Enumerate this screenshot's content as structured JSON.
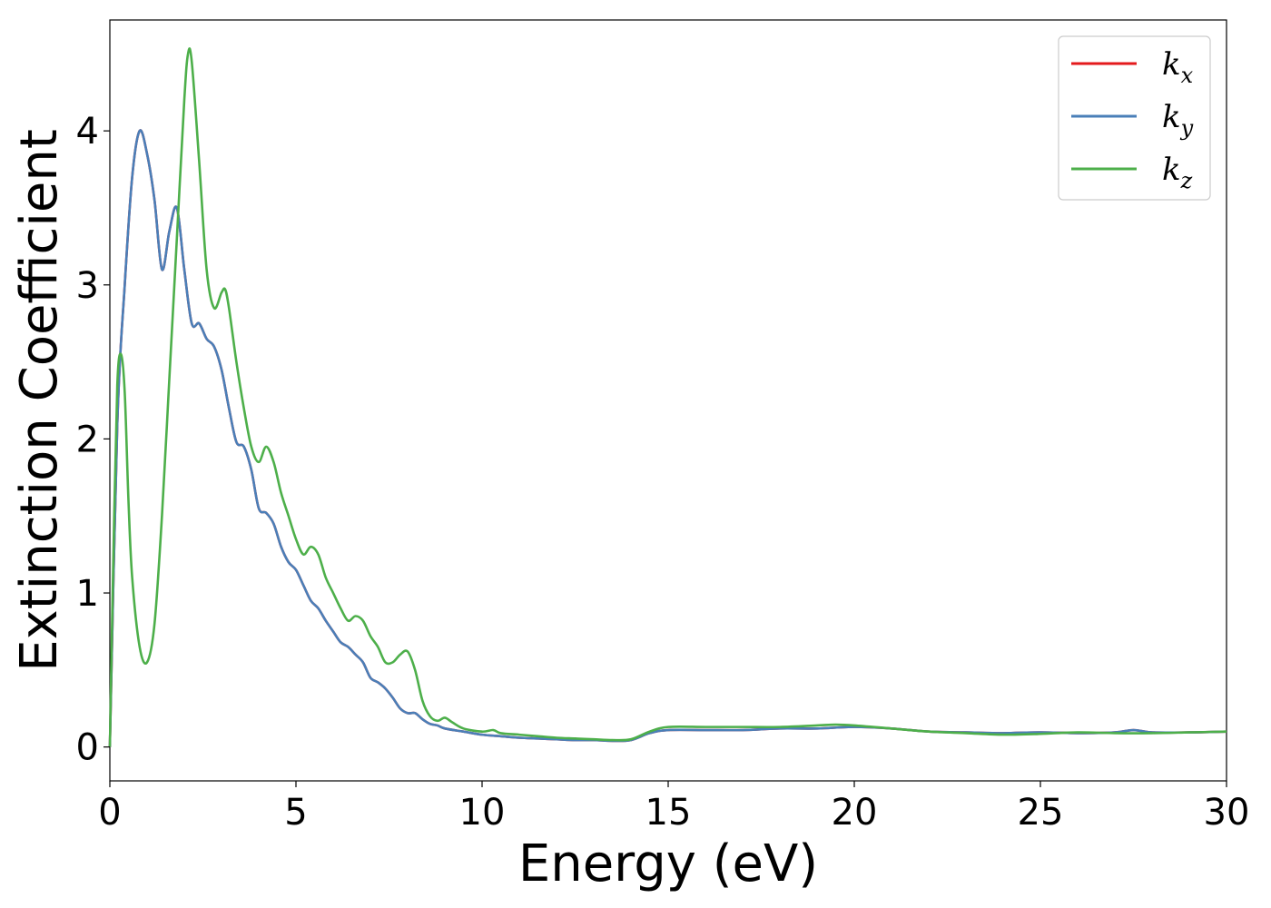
{
  "chart_data": {
    "type": "line",
    "xlabel": "Energy (eV)",
    "ylabel": "Extinction Coefficient",
    "xlim": [
      0,
      30
    ],
    "ylim": [
      -0.22,
      4.72
    ],
    "xticks": [
      "0",
      "5",
      "10",
      "15",
      "20",
      "25",
      "30"
    ],
    "yticks": [
      "0",
      "1",
      "2",
      "3",
      "4"
    ],
    "grid": false,
    "legend_position": "top-right",
    "series": [
      {
        "name": "k_x",
        "legend_main": "k",
        "legend_sub": "x",
        "color": "#e41a1c",
        "x": [
          0,
          0.2,
          0.4,
          0.6,
          0.8,
          1.0,
          1.2,
          1.4,
          1.6,
          1.8,
          2.0,
          2.2,
          2.4,
          2.6,
          2.8,
          3.0,
          3.2,
          3.4,
          3.6,
          3.8,
          4.0,
          4.2,
          4.4,
          4.6,
          4.8,
          5.0,
          5.2,
          5.4,
          5.6,
          5.8,
          6.0,
          6.2,
          6.4,
          6.6,
          6.8,
          7.0,
          7.2,
          7.4,
          7.6,
          7.8,
          8.0,
          8.2,
          8.4,
          8.6,
          8.8,
          9.0,
          9.5,
          10.0,
          10.5,
          11.0,
          11.5,
          12.0,
          12.5,
          13.0,
          13.5,
          14.0,
          14.5,
          15.0,
          16.0,
          17.0,
          18.0,
          19.0,
          20.0,
          21.0,
          22.0,
          23.0,
          24.0,
          25.0,
          26.0,
          27.0,
          27.5,
          28.0,
          29.0,
          30.0
        ],
        "values": [
          0,
          2.1,
          3.0,
          3.7,
          4.0,
          3.85,
          3.55,
          3.1,
          3.35,
          3.5,
          3.1,
          2.75,
          2.75,
          2.65,
          2.6,
          2.45,
          2.2,
          1.98,
          1.95,
          1.8,
          1.55,
          1.52,
          1.45,
          1.3,
          1.2,
          1.15,
          1.05,
          0.95,
          0.9,
          0.82,
          0.75,
          0.68,
          0.65,
          0.6,
          0.55,
          0.45,
          0.42,
          0.38,
          0.32,
          0.25,
          0.22,
          0.22,
          0.18,
          0.15,
          0.14,
          0.12,
          0.1,
          0.08,
          0.07,
          0.06,
          0.055,
          0.05,
          0.045,
          0.045,
          0.04,
          0.045,
          0.09,
          0.11,
          0.11,
          0.11,
          0.12,
          0.12,
          0.13,
          0.12,
          0.1,
          0.095,
          0.09,
          0.095,
          0.09,
          0.095,
          0.11,
          0.095,
          0.095,
          0.1
        ]
      },
      {
        "name": "k_y",
        "legend_main": "k",
        "legend_sub": "y",
        "color": "#4a7fb8",
        "x": [
          0,
          0.2,
          0.4,
          0.6,
          0.8,
          1.0,
          1.2,
          1.4,
          1.6,
          1.8,
          2.0,
          2.2,
          2.4,
          2.6,
          2.8,
          3.0,
          3.2,
          3.4,
          3.6,
          3.8,
          4.0,
          4.2,
          4.4,
          4.6,
          4.8,
          5.0,
          5.2,
          5.4,
          5.6,
          5.8,
          6.0,
          6.2,
          6.4,
          6.6,
          6.8,
          7.0,
          7.2,
          7.4,
          7.6,
          7.8,
          8.0,
          8.2,
          8.4,
          8.6,
          8.8,
          9.0,
          9.5,
          10.0,
          10.5,
          11.0,
          11.5,
          12.0,
          12.5,
          13.0,
          13.5,
          14.0,
          14.5,
          15.0,
          16.0,
          17.0,
          18.0,
          19.0,
          20.0,
          21.0,
          22.0,
          23.0,
          24.0,
          25.0,
          26.0,
          27.0,
          27.5,
          28.0,
          29.0,
          30.0
        ],
        "values": [
          0,
          2.1,
          3.0,
          3.7,
          4.0,
          3.85,
          3.55,
          3.1,
          3.35,
          3.5,
          3.1,
          2.75,
          2.75,
          2.65,
          2.6,
          2.45,
          2.2,
          1.98,
          1.95,
          1.8,
          1.55,
          1.52,
          1.45,
          1.3,
          1.2,
          1.15,
          1.05,
          0.95,
          0.9,
          0.82,
          0.75,
          0.68,
          0.65,
          0.6,
          0.55,
          0.45,
          0.42,
          0.38,
          0.32,
          0.25,
          0.22,
          0.22,
          0.18,
          0.15,
          0.14,
          0.12,
          0.1,
          0.08,
          0.07,
          0.06,
          0.055,
          0.05,
          0.045,
          0.045,
          0.04,
          0.045,
          0.09,
          0.11,
          0.11,
          0.11,
          0.12,
          0.12,
          0.13,
          0.12,
          0.1,
          0.095,
          0.09,
          0.095,
          0.09,
          0.095,
          0.11,
          0.095,
          0.095,
          0.1
        ]
      },
      {
        "name": "k_z",
        "legend_main": "k",
        "legend_sub": "z",
        "color": "#4daf4a",
        "x": [
          0,
          0.1,
          0.2,
          0.3,
          0.4,
          0.5,
          0.6,
          0.8,
          1.0,
          1.2,
          1.4,
          1.6,
          1.8,
          2.0,
          2.1,
          2.2,
          2.4,
          2.6,
          2.8,
          3.0,
          3.1,
          3.2,
          3.4,
          3.6,
          3.8,
          4.0,
          4.2,
          4.4,
          4.6,
          4.8,
          5.0,
          5.2,
          5.4,
          5.6,
          5.8,
          6.0,
          6.2,
          6.4,
          6.6,
          6.8,
          7.0,
          7.2,
          7.4,
          7.6,
          7.8,
          8.0,
          8.2,
          8.4,
          8.6,
          8.8,
          9.0,
          9.2,
          9.5,
          10.0,
          10.3,
          10.5,
          11.0,
          11.5,
          12.0,
          12.5,
          13.0,
          13.5,
          14.0,
          14.5,
          15.0,
          16.0,
          17.0,
          18.0,
          19.0,
          19.5,
          20.0,
          21.0,
          22.0,
          23.0,
          24.0,
          25.0,
          26.0,
          27.0,
          28.0,
          29.0,
          30.0
        ],
        "values": [
          0,
          1.3,
          2.35,
          2.55,
          2.3,
          1.6,
          1.1,
          0.65,
          0.55,
          0.8,
          1.5,
          2.4,
          3.3,
          4.2,
          4.5,
          4.45,
          3.8,
          3.1,
          2.85,
          2.95,
          2.97,
          2.85,
          2.5,
          2.2,
          1.95,
          1.85,
          1.95,
          1.85,
          1.65,
          1.5,
          1.35,
          1.25,
          1.3,
          1.25,
          1.1,
          1.0,
          0.9,
          0.82,
          0.85,
          0.82,
          0.72,
          0.65,
          0.55,
          0.55,
          0.6,
          0.62,
          0.5,
          0.3,
          0.2,
          0.17,
          0.19,
          0.16,
          0.12,
          0.1,
          0.11,
          0.09,
          0.08,
          0.07,
          0.06,
          0.055,
          0.05,
          0.045,
          0.05,
          0.1,
          0.13,
          0.13,
          0.13,
          0.13,
          0.14,
          0.145,
          0.14,
          0.12,
          0.1,
          0.09,
          0.08,
          0.085,
          0.095,
          0.09,
          0.09,
          0.095,
          0.1
        ]
      }
    ]
  }
}
